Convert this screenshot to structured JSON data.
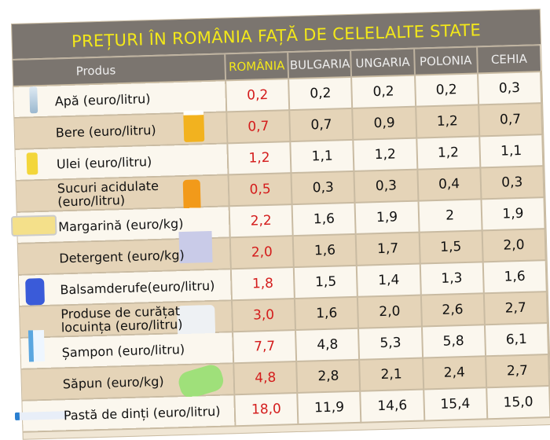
{
  "chart_data": {
    "type": "table",
    "title": "PREȚURI ÎN ROMÂNIA FAȚĂ DE CELELALTE STATE",
    "product_header": "Produs",
    "columns": [
      "ROMÂNIA",
      "BULGARIA",
      "UNGARIA",
      "POLONIA",
      "CEHIA"
    ],
    "rows": [
      {
        "product": "Apă (euro/litru)",
        "icon": "water-bottle-icon",
        "values": [
          "0,2",
          "0,2",
          "0,2",
          "0,2",
          "0,3"
        ]
      },
      {
        "product": "Bere (euro/litru)",
        "icon": "beer-mug-icon",
        "values": [
          "0,7",
          "0,7",
          "0,9",
          "1,2",
          "0,7"
        ]
      },
      {
        "product": "Ulei (euro/litru)",
        "icon": "oil-bottle-icon",
        "values": [
          "1,2",
          "1,1",
          "1,2",
          "1,2",
          "1,1"
        ]
      },
      {
        "product": "Sucuri acidulate (euro/litru)",
        "icon": "juice-bottle-icon",
        "values": [
          "0,5",
          "0,3",
          "0,3",
          "0,4",
          "0,3"
        ]
      },
      {
        "product": "Margarină (euro/kg)",
        "icon": "margarine-icon",
        "values": [
          "2,2",
          "1,6",
          "1,9",
          "2",
          "1,9"
        ]
      },
      {
        "product": "Detergent (euro/kg)",
        "icon": "detergent-icon",
        "values": [
          "2,0",
          "1,6",
          "1,7",
          "1,5",
          "2,0"
        ]
      },
      {
        "product": "Balsamderufe(euro/litru)",
        "icon": "softener-icon",
        "values": [
          "1,8",
          "1,5",
          "1,4",
          "1,3",
          "1,6"
        ]
      },
      {
        "product": "Produse de curățat locuința (euro/litru)",
        "icon": "cleaning-bottles-icon",
        "values": [
          "3,0",
          "1,6",
          "2,0",
          "2,6",
          "2,7"
        ]
      },
      {
        "product": "Șampon (euro/litru)",
        "icon": "shampoo-icon",
        "values": [
          "7,7",
          "4,8",
          "5,3",
          "5,8",
          "6,1"
        ]
      },
      {
        "product": "Săpun (euro/kg)",
        "icon": "soap-icon",
        "values": [
          "4,8",
          "2,8",
          "2,1",
          "2,4",
          "2,7"
        ]
      },
      {
        "product": "Pastă de dinți (euro/litru)",
        "icon": "toothpaste-icon",
        "values": [
          "18,0",
          "11,9",
          "14,6",
          "15,4",
          "15,0"
        ]
      }
    ],
    "colors": {
      "header_bg": "#7b756f",
      "title_text": "#f3e81a",
      "romania_values": "#d41c1c",
      "row_light": "#fbf7ee",
      "row_dark": "#e5d4b8"
    }
  }
}
